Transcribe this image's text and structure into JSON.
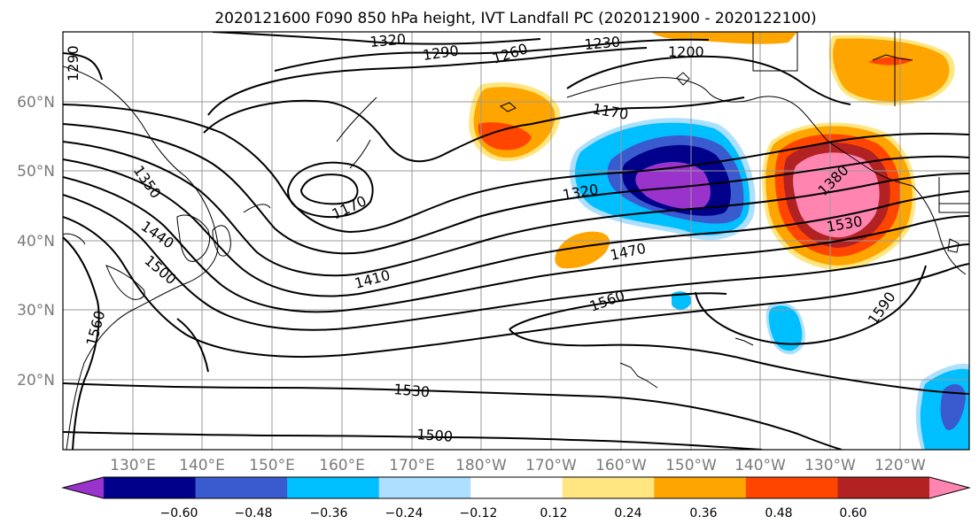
{
  "title": "2020121600 F090 850 hPa height, IVT Landfall PC (2020121900 - 2020122100)",
  "lat_labels": [
    "60°N",
    "50°N",
    "40°N",
    "30°N",
    "20°N"
  ],
  "lon_labels": [
    "130°E",
    "140°E",
    "150°E",
    "160°E",
    "170°E",
    "180°W",
    "170°W",
    "160°W",
    "150°W",
    "140°W",
    "130°W",
    "120°W"
  ],
  "contour_labels": [
    "1320",
    "1290",
    "1260",
    "1230",
    "1200",
    "1170",
    "1350",
    "1440",
    "1500",
    "1170",
    "1320",
    "1380",
    "1530",
    "1470",
    "1410",
    "1560",
    "1560",
    "1590",
    "1530",
    "1500",
    "1290"
  ],
  "colorbar": {
    "ticks": [
      "−0.60",
      "−0.48",
      "−0.36",
      "−0.24",
      "−0.12",
      "0.12",
      "0.24",
      "0.36",
      "0.48",
      "0.60"
    ],
    "colors": [
      "#9933CC",
      "#00008B",
      "#3A5BD0",
      "#00BFFF",
      "#ADDFFF",
      "#FFFFFF",
      "#FFE680",
      "#FFA500",
      "#FF4500",
      "#B22222",
      "#FF85B0"
    ]
  },
  "chart_data": {
    "type": "heatmap",
    "title": "2020121600 F090 850 hPa height, IVT Landfall PC (2020121900 - 2020122100)",
    "contour_levels_m": [
      1170,
      1200,
      1230,
      1260,
      1290,
      1320,
      1350,
      1380,
      1410,
      1440,
      1470,
      1500,
      1530,
      1560,
      1590
    ],
    "colorbar_levels": [
      -0.6,
      -0.48,
      -0.36,
      -0.24,
      -0.12,
      0.12,
      0.24,
      0.36,
      0.48,
      0.6
    ],
    "colorbar_extend": "both",
    "lat_range": [
      "10°N",
      "70°N"
    ],
    "lon_range": [
      "122°E",
      "110°W"
    ],
    "grid": true
  }
}
